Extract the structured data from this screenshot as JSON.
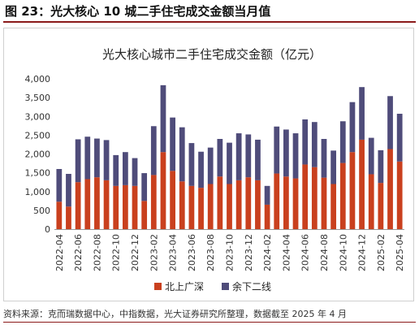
{
  "figure": {
    "label": "图 23：光大核心 10 城二手住宅成交金额当月值",
    "source": "资料来源：克而瑞数据中心，中指数据，光大证券研究所整理，数据截至 2025 年 4 月"
  },
  "colors": {
    "north": "#c9401e",
    "rest": "#4f4c7a",
    "accent": "#8b1a1a"
  },
  "chart_data": {
    "type": "bar",
    "stacked": true,
    "title": "光大核心城市二手住宅成交金额（亿元）",
    "x": [
      "2022-04",
      "2022-05",
      "2022-06",
      "2022-07",
      "2022-08",
      "2022-09",
      "2022-10",
      "2022-11",
      "2022-12",
      "2023-01",
      "2023-02",
      "2023-03",
      "2023-04",
      "2023-05",
      "2023-06",
      "2023-07",
      "2023-08",
      "2023-09",
      "2023-10",
      "2023-11",
      "2023-12",
      "2024-01",
      "2024-02",
      "2024-03",
      "2024-04",
      "2024-05",
      "2024-06",
      "2024-07",
      "2024-08",
      "2024-09",
      "2024-10",
      "2024-11",
      "2024-12",
      "2025-01",
      "2025-02",
      "2025-03",
      "2025-04"
    ],
    "tick_labels": [
      "2022-04",
      "2022-06",
      "2022-08",
      "2022-10",
      "2022-12",
      "2023-02",
      "2023-04",
      "2023-06",
      "2023-08",
      "2023-10",
      "2023-12",
      "2024-02",
      "2024-04",
      "2024-06",
      "2024-08",
      "2024-10",
      "2024-12",
      "2025-02",
      "2025-04"
    ],
    "series": [
      {
        "name": "北上广深",
        "values": [
          730,
          600,
          1250,
          1330,
          1380,
          1300,
          1150,
          1170,
          1150,
          750,
          1440,
          2050,
          1550,
          1270,
          1150,
          1100,
          1200,
          1400,
          1200,
          1300,
          1380,
          1300,
          650,
          1480,
          1400,
          1350,
          1720,
          1650,
          1370,
          1200,
          1760,
          2050,
          2380,
          1460,
          1230,
          2130,
          1800
        ]
      },
      {
        "name": "余下二线",
        "values": [
          870,
          870,
          1140,
          1130,
          1030,
          1070,
          820,
          880,
          740,
          740,
          1300,
          1780,
          1420,
          1440,
          1140,
          960,
          970,
          1000,
          1100,
          1250,
          1140,
          1080,
          500,
          1250,
          1250,
          1200,
          1200,
          1200,
          1030,
          890,
          1110,
          1330,
          1400,
          970,
          870,
          1410,
          1270
        ]
      }
    ],
    "ylim": [
      0,
      4000
    ],
    "yticks": [
      0,
      500,
      1000,
      1500,
      2000,
      2500,
      3000,
      3500,
      4000
    ],
    "ytick_labels": [
      "0",
      "500",
      "1,000",
      "1,500",
      "2,000",
      "2,500",
      "3,000",
      "3,500",
      "4,000"
    ],
    "grid": false,
    "legend_position": "bottom"
  }
}
